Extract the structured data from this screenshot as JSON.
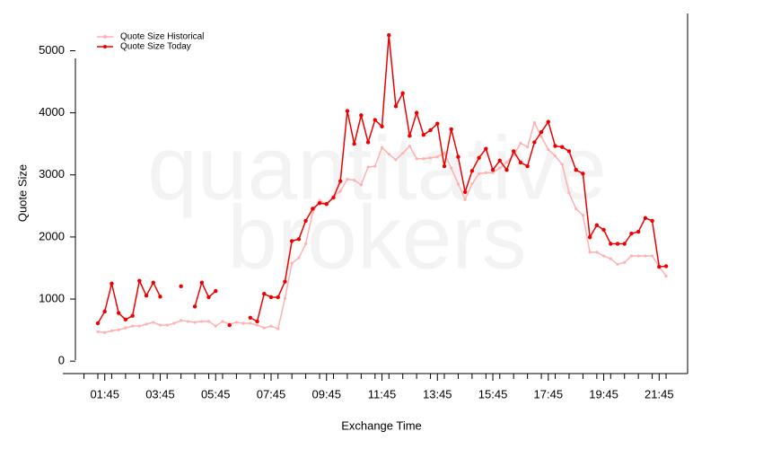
{
  "chart_data": {
    "type": "line",
    "watermark": [
      "quantitative",
      "brokers"
    ],
    "x_label": "Exchange Time",
    "y_label": "Quote Size",
    "x": [
      "01:30",
      "01:45",
      "02:00",
      "02:15",
      "02:30",
      "02:45",
      "03:00",
      "03:15",
      "03:30",
      "03:45",
      "04:00",
      "04:15",
      "04:30",
      "04:45",
      "05:00",
      "05:15",
      "05:30",
      "05:45",
      "06:00",
      "06:15",
      "06:30",
      "06:45",
      "07:00",
      "07:15",
      "07:30",
      "07:45",
      "08:00",
      "08:15",
      "08:30",
      "08:45",
      "09:00",
      "09:15",
      "09:30",
      "09:45",
      "10:00",
      "10:15",
      "10:30",
      "10:45",
      "11:00",
      "11:15",
      "11:30",
      "11:45",
      "12:00",
      "12:15",
      "12:30",
      "12:45",
      "13:00",
      "13:15",
      "13:30",
      "13:45",
      "14:00",
      "14:15",
      "14:30",
      "14:45",
      "15:00",
      "15:15",
      "15:30",
      "15:45",
      "16:00",
      "16:15",
      "16:30",
      "16:45",
      "17:00",
      "17:15",
      "17:30",
      "17:45",
      "18:00",
      "18:15",
      "18:30",
      "18:45",
      "19:00",
      "19:15",
      "19:30",
      "19:45",
      "20:00",
      "20:15",
      "20:30",
      "20:45",
      "21:00",
      "21:15",
      "21:30",
      "21:45",
      "22:00"
    ],
    "series": [
      {
        "name": "Quote Size Historical",
        "color": "#ffb0b0",
        "values": [
          475,
          460,
          490,
          505,
          535,
          565,
          565,
          595,
          625,
          580,
          580,
          610,
          655,
          640,
          625,
          640,
          640,
          565,
          640,
          595,
          625,
          610,
          610,
          580,
          535,
          565,
          520,
          1010,
          1575,
          1665,
          1890,
          2395,
          2590,
          2530,
          2650,
          2740,
          2930,
          2915,
          2840,
          3125,
          3140,
          3440,
          3335,
          3245,
          3350,
          3465,
          3260,
          3260,
          3275,
          3290,
          3350,
          3110,
          2855,
          2605,
          2855,
          3020,
          3035,
          3035,
          3110,
          3200,
          3320,
          3510,
          3450,
          3840,
          3615,
          3410,
          3305,
          3170,
          2710,
          2455,
          2350,
          1755,
          1755,
          1695,
          1650,
          1560,
          1590,
          1695,
          1695,
          1695,
          1695,
          1520,
          1370
        ]
      },
      {
        "name": "Quote Size Today",
        "color": "#ee0000",
        "values": [
          610,
          800,
          1250,
          775,
          670,
          730,
          1295,
          1055,
          1265,
          1040,
          null,
          null,
          1205,
          null,
          880,
          1265,
          1030,
          1130,
          null,
          580,
          null,
          null,
          700,
          640,
          1085,
          1030,
          1030,
          1280,
          1935,
          1965,
          2260,
          2455,
          2545,
          2530,
          2635,
          2900,
          4030,
          3500,
          3960,
          3525,
          3885,
          3780,
          5250,
          4105,
          4315,
          3630,
          4000,
          3645,
          3720,
          3825,
          3140,
          3735,
          3290,
          2725,
          3065,
          3275,
          3420,
          3080,
          3230,
          3080,
          3380,
          3200,
          3140,
          3525,
          3690,
          3855,
          3465,
          3450,
          3380,
          3080,
          3020,
          1995,
          2190,
          2115,
          1890,
          1890,
          1890,
          2055,
          2085,
          2305,
          2260,
          1520,
          1530
        ]
      }
    ],
    "xticks": [
      "01:45",
      "03:45",
      "05:45",
      "07:45",
      "09:45",
      "11:45",
      "13:45",
      "15:45",
      "17:45",
      "19:45",
      "21:45"
    ],
    "ylim": [
      -200,
      5600
    ],
    "yticks": [
      0,
      1000,
      2000,
      3000,
      4000,
      5000
    ],
    "legend": "top-left"
  }
}
